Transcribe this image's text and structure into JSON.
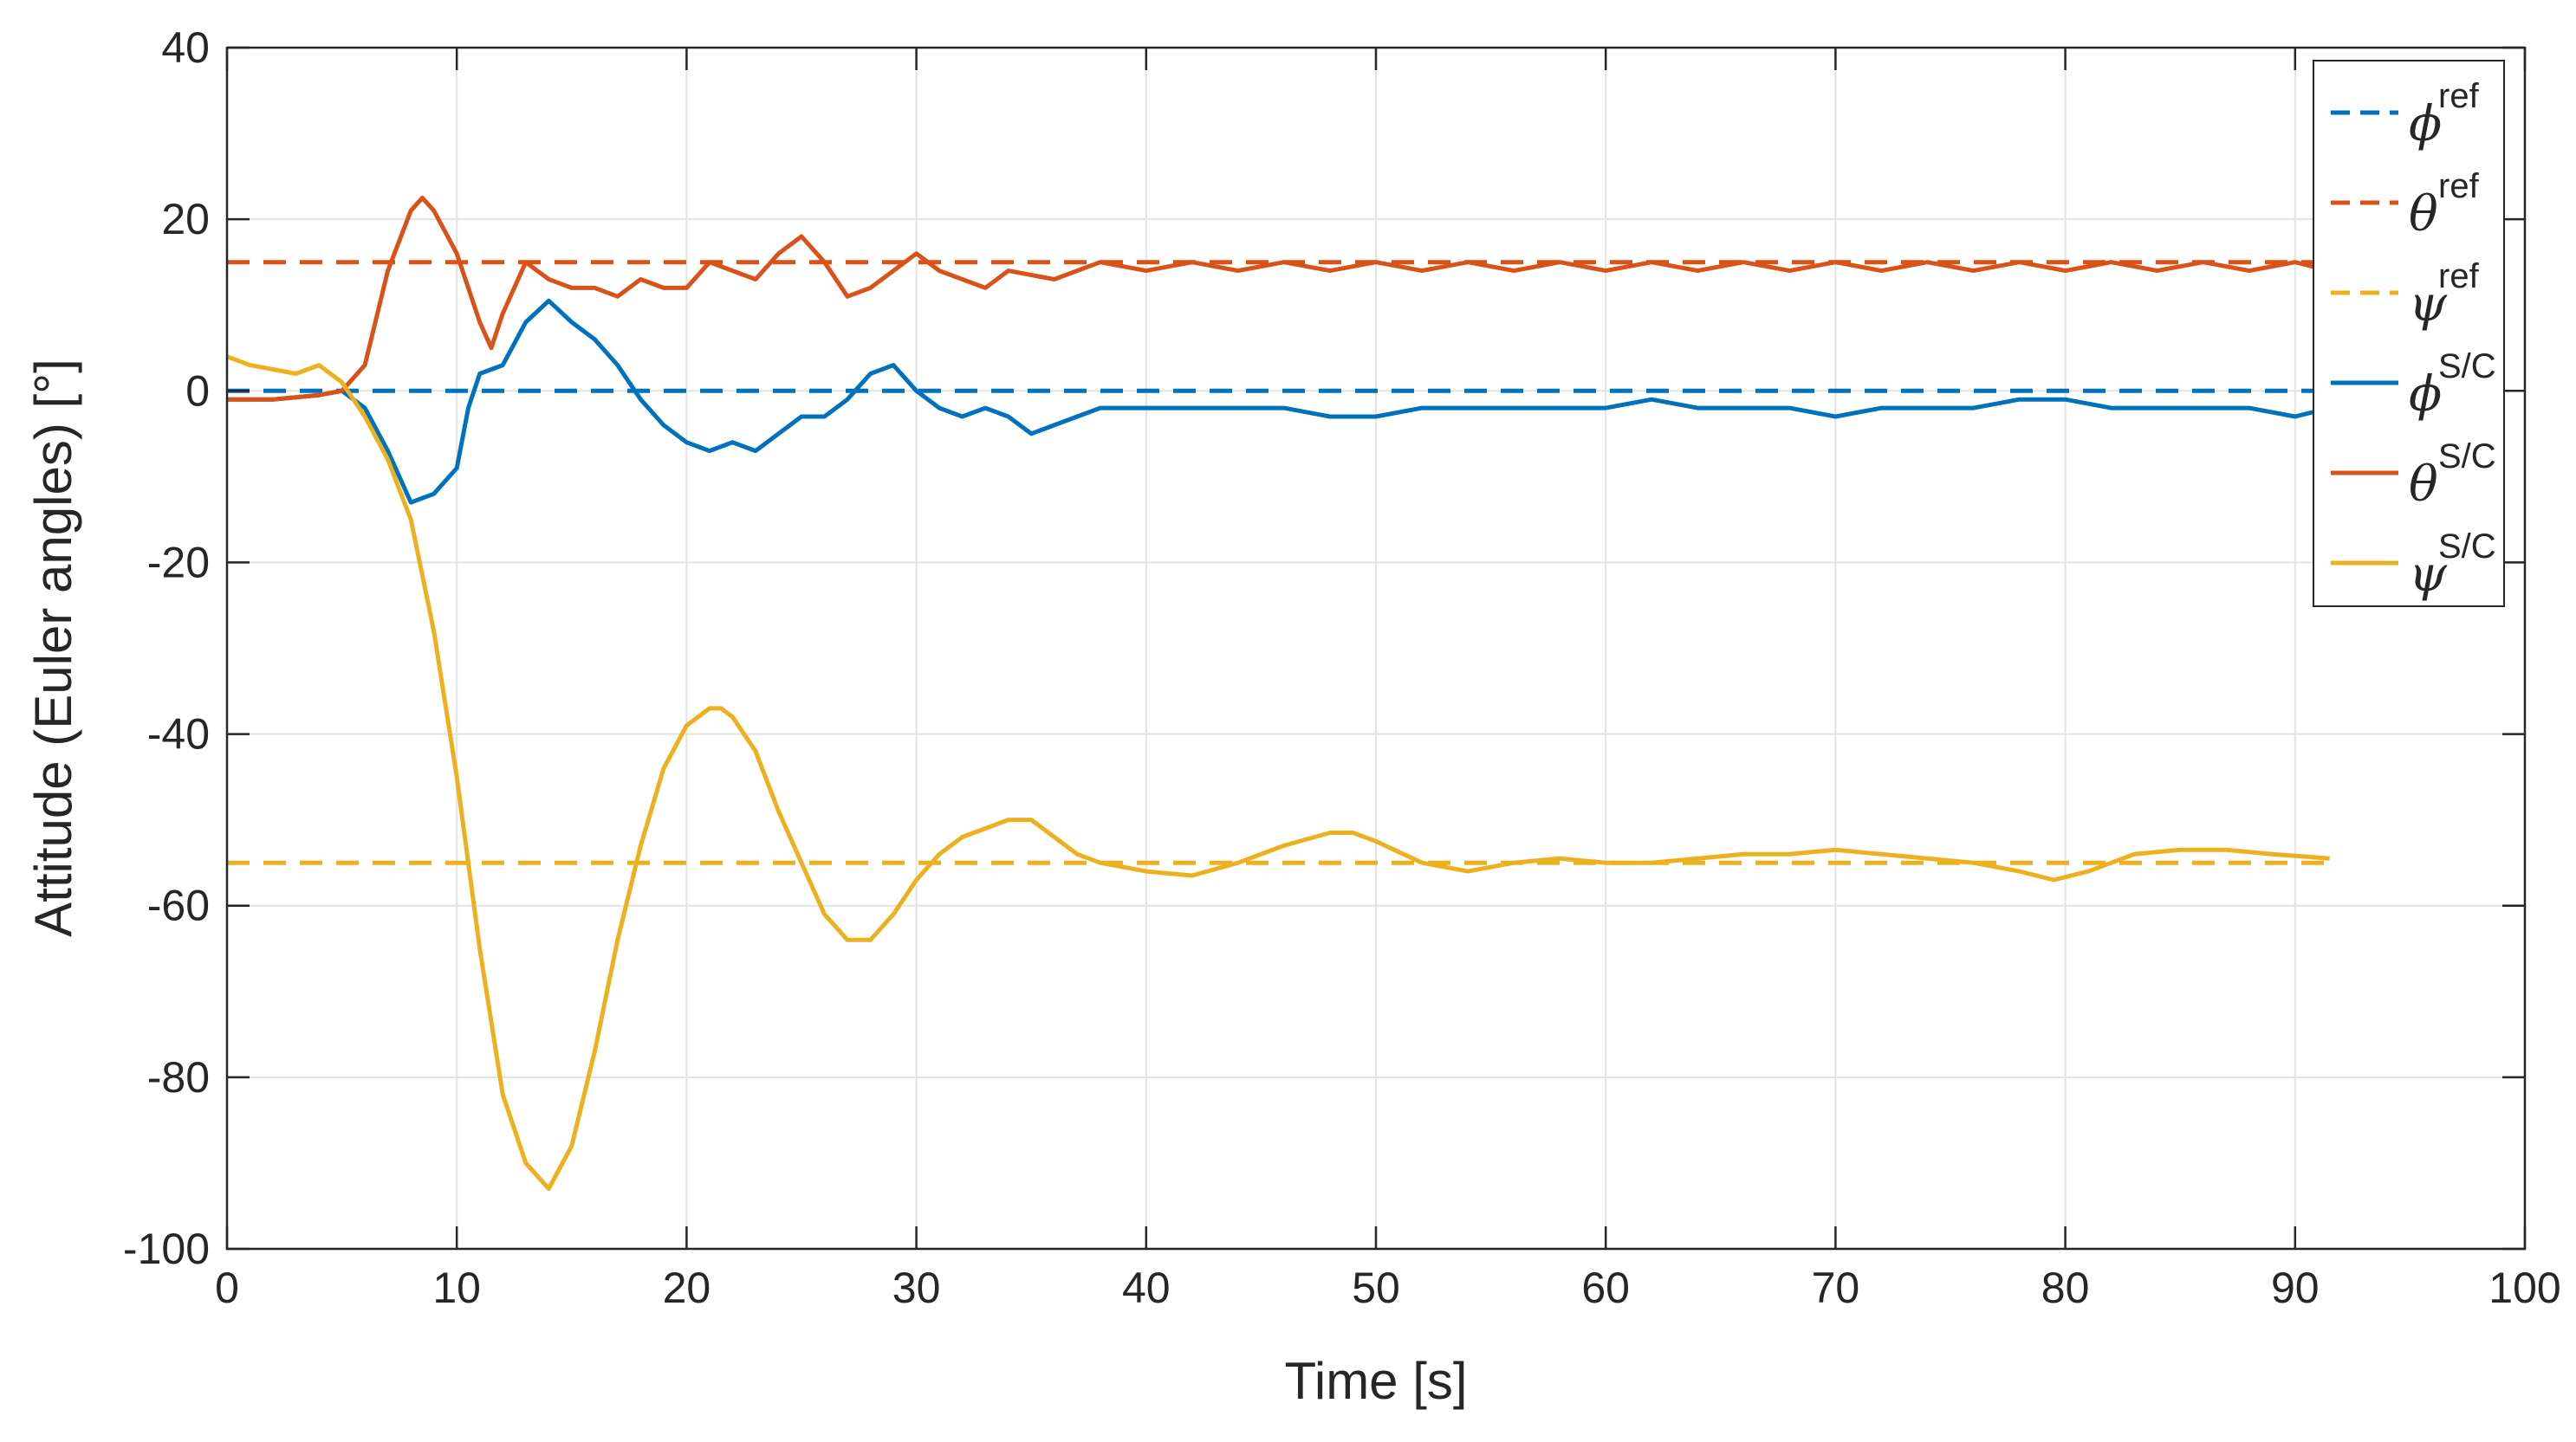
{
  "chart_data": {
    "type": "line",
    "title": "",
    "xlabel": "Time [s]",
    "ylabel": "Attitude (Euler angles) [°]",
    "xlim": [
      0,
      100
    ],
    "ylim": [
      -100,
      40
    ],
    "xticks": [
      0,
      10,
      20,
      30,
      40,
      50,
      60,
      70,
      80,
      90,
      100
    ],
    "yticks": [
      -100,
      -80,
      -60,
      -40,
      -20,
      0,
      20,
      40
    ],
    "grid": true,
    "legend_position": "top-right",
    "series": [
      {
        "name": "phi_ref",
        "symbol": "ϕ",
        "sup": "ref",
        "color": "#0072BD",
        "style": "dashed",
        "x": [
          0,
          91.5
        ],
        "y": [
          0,
          0
        ]
      },
      {
        "name": "theta_ref",
        "symbol": "θ",
        "sup": "ref",
        "color": "#D95319",
        "style": "dashed",
        "x": [
          0,
          91.5
        ],
        "y": [
          15,
          15
        ]
      },
      {
        "name": "psi_ref",
        "symbol": "ψ",
        "sup": "ref",
        "color": "#EDB120",
        "style": "dashed",
        "x": [
          0,
          91.5
        ],
        "y": [
          -55,
          -55
        ]
      },
      {
        "name": "phi_sc",
        "symbol": "ϕ",
        "sup": "S/C",
        "color": "#0072BD",
        "style": "solid",
        "x": [
          0,
          2,
          4,
          5,
          6,
          7,
          8,
          9,
          10,
          10.5,
          11,
          12,
          13,
          14,
          15,
          16,
          17,
          18,
          19,
          20,
          21,
          22,
          23,
          24,
          25,
          26,
          27,
          28,
          29,
          30,
          31,
          32,
          33,
          34,
          35,
          36,
          38,
          40,
          42,
          44,
          46,
          48,
          50,
          52,
          55,
          58,
          60,
          62,
          64,
          66,
          68,
          70,
          72,
          74,
          76,
          78,
          80,
          82,
          84,
          86,
          88,
          90,
          91.5
        ],
        "y": [
          -1,
          -1,
          -0.5,
          0,
          -2,
          -7,
          -13,
          -12,
          -9,
          -2,
          2,
          3,
          8,
          10.5,
          8,
          6,
          3,
          -1,
          -4,
          -6,
          -7,
          -6,
          -7,
          -5,
          -3,
          -3,
          -1,
          2,
          3,
          0,
          -2,
          -3,
          -2,
          -3,
          -5,
          -4,
          -2,
          -2,
          -2,
          -2,
          -2,
          -3,
          -3,
          -2,
          -2,
          -2,
          -2,
          -1,
          -2,
          -2,
          -2,
          -3,
          -2,
          -2,
          -2,
          -1,
          -1,
          -2,
          -2,
          -2,
          -2,
          -3,
          -2
        ]
      },
      {
        "name": "theta_sc",
        "symbol": "θ",
        "sup": "S/C",
        "color": "#D95319",
        "style": "solid",
        "x": [
          0,
          2,
          4,
          5,
          6,
          7,
          8,
          8.5,
          9,
          10,
          11,
          11.5,
          12,
          13,
          14,
          15,
          16,
          17,
          18,
          19,
          20,
          21,
          22,
          23,
          24,
          25,
          26,
          27,
          28,
          29,
          30,
          31,
          32,
          33,
          34,
          36,
          38,
          40,
          42,
          44,
          46,
          48,
          50,
          52,
          54,
          56,
          58,
          60,
          62,
          64,
          66,
          68,
          70,
          72,
          74,
          76,
          78,
          80,
          82,
          84,
          86,
          88,
          90,
          91.5
        ],
        "y": [
          -1,
          -1,
          -0.5,
          0,
          3,
          14,
          21,
          22.5,
          21,
          16,
          8,
          5,
          9,
          15,
          13,
          12,
          12,
          11,
          13,
          12,
          12,
          15,
          14,
          13,
          16,
          18,
          15,
          11,
          12,
          14,
          16,
          14,
          13,
          12,
          14,
          13,
          15,
          14,
          15,
          14,
          15,
          14,
          15,
          14,
          15,
          14,
          15,
          14,
          15,
          14,
          15,
          14,
          15,
          14,
          15,
          14,
          15,
          14,
          15,
          14,
          15,
          14,
          15,
          14
        ]
      },
      {
        "name": "psi_sc",
        "symbol": "ψ",
        "sup": "S/C",
        "color": "#EDB120",
        "style": "solid",
        "x": [
          0,
          1,
          2,
          3,
          4,
          5,
          6,
          7,
          8,
          9,
          10,
          11,
          12,
          13,
          14,
          15,
          16,
          17,
          18,
          19,
          20,
          21,
          21.5,
          22,
          23,
          24,
          25,
          26,
          27,
          28,
          29,
          30,
          31,
          32,
          33,
          34,
          35,
          36,
          37,
          38,
          40,
          42,
          44,
          46,
          48,
          49,
          50,
          52,
          54,
          56,
          58,
          60,
          62,
          64,
          66,
          68,
          70,
          72,
          74,
          76,
          78,
          79.5,
          81,
          83,
          85,
          87,
          89,
          91.5
        ],
        "y": [
          4,
          3,
          2.5,
          2,
          3,
          1,
          -3,
          -8,
          -15,
          -28,
          -45,
          -65,
          -82,
          -90,
          -93,
          -88,
          -77,
          -64,
          -53,
          -44,
          -39,
          -37,
          -37,
          -38,
          -42,
          -49,
          -55,
          -61,
          -64,
          -64,
          -61,
          -57,
          -54,
          -52,
          -51,
          -50,
          -50,
          -52,
          -54,
          -55,
          -56,
          -56.5,
          -55,
          -53,
          -51.5,
          -51.5,
          -52.5,
          -55,
          -56,
          -55,
          -54.5,
          -55,
          -55,
          -54.5,
          -54,
          -54,
          -53.5,
          -54,
          -54.5,
          -55,
          -56,
          -57,
          -56,
          -54,
          -53.5,
          -53.5,
          -54,
          -54.5
        ]
      }
    ]
  }
}
